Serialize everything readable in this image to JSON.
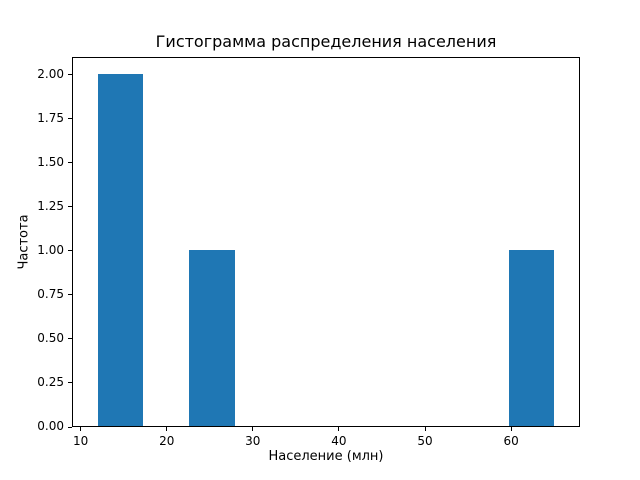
{
  "chart_data": {
    "type": "bar",
    "title": "Гистограмма распределения населения",
    "xlabel": "Население (млн)",
    "ylabel": "Частота",
    "bar_color": "#1f77b4",
    "bin_edges": [
      12,
      17.3,
      22.6,
      27.9,
      33.2,
      38.5,
      43.8,
      49.1,
      54.4,
      59.7,
      65
    ],
    "counts": [
      2,
      0,
      1,
      0,
      0,
      0,
      0,
      0,
      0,
      1
    ],
    "xlim": [
      9,
      68
    ],
    "ylim": [
      0,
      2.1
    ],
    "xtick_values": [
      10,
      20,
      30,
      40,
      50,
      60
    ],
    "xtick_labels": [
      "10",
      "20",
      "30",
      "40",
      "50",
      "60"
    ],
    "ytick_values": [
      0,
      0.25,
      0.5,
      0.75,
      1.0,
      1.25,
      1.5,
      1.75,
      2.0
    ],
    "ytick_labels": [
      "0.00",
      "0.25",
      "0.50",
      "0.75",
      "1.00",
      "1.25",
      "1.50",
      "1.75",
      "2.00"
    ],
    "grid": false,
    "legend_position": "none"
  }
}
